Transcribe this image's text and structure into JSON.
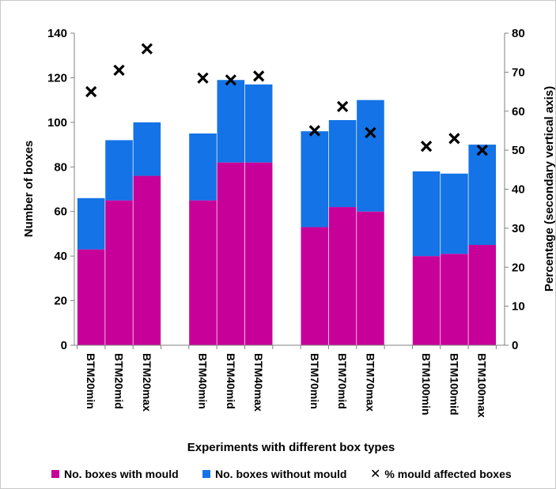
{
  "chart_data": {
    "type": "bar",
    "stacked": true,
    "ylabel": "Number  of  boxes",
    "y2label": "Percentage (secondary  vertical  axis)",
    "xlabel": "Experiments with different box types",
    "ylim": [
      0,
      140
    ],
    "y2lim": [
      0,
      80
    ],
    "yticks": [
      0,
      20,
      40,
      60,
      80,
      100,
      120,
      140
    ],
    "y2ticks": [
      0,
      10,
      20,
      30,
      40,
      50,
      60,
      70,
      80
    ],
    "categories": [
      "BTM20min",
      "BTM20mid",
      "BTM20max",
      "BTM40min",
      "BTM40mid",
      "BTM40max",
      "BTM70min",
      "BTM70mid",
      "BTM70max",
      "BTM100min",
      "BTM100mid",
      "BTM100max"
    ],
    "groups": [
      [
        0,
        1,
        2
      ],
      [
        3,
        4,
        5
      ],
      [
        6,
        7,
        8
      ],
      [
        9,
        10,
        11
      ]
    ],
    "series": [
      {
        "name": "No. boxes with mould",
        "type": "bar",
        "axis": "primary",
        "color": "#c8009a",
        "values": [
          43,
          65,
          76,
          65,
          82,
          82,
          53,
          62,
          60,
          40,
          41,
          45
        ]
      },
      {
        "name": "No. boxes without mould",
        "type": "bar",
        "axis": "primary",
        "color": "#1473e6",
        "values": [
          23,
          27,
          24,
          30,
          37,
          35,
          43,
          39,
          50,
          38,
          36,
          45
        ]
      },
      {
        "name": "% mould affected boxes",
        "type": "marker",
        "axis": "secondary",
        "color": "#000000",
        "values": [
          65,
          70.5,
          76,
          68.5,
          68,
          69,
          55,
          61.2,
          54.5,
          51,
          53,
          50
        ]
      }
    ],
    "legend_position": "bottom",
    "grid": false
  }
}
